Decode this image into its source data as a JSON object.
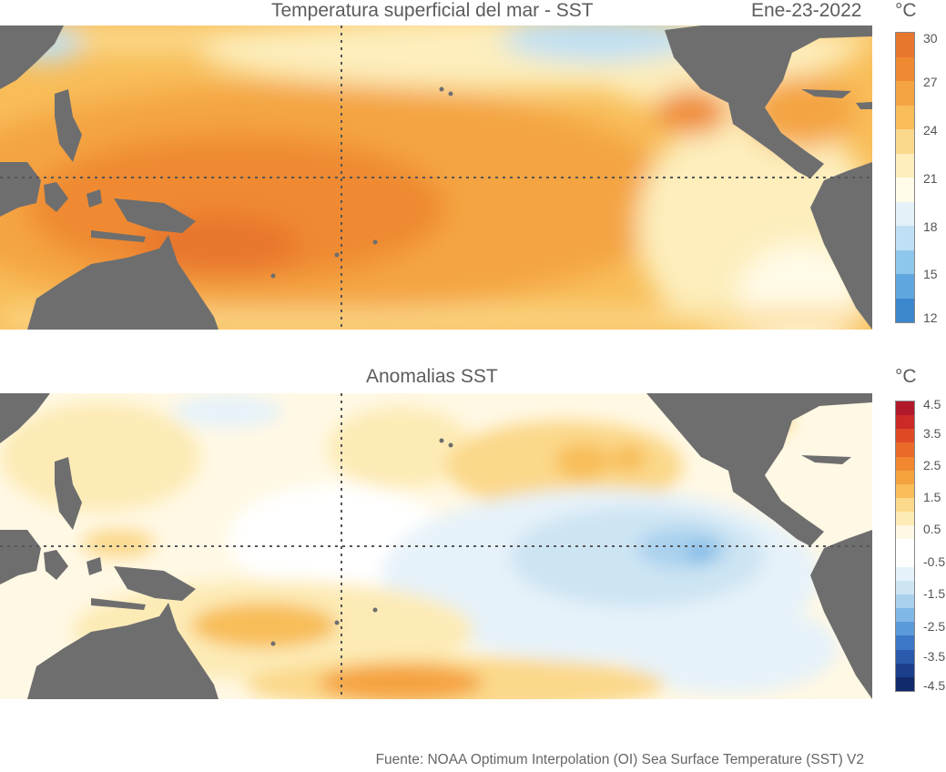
{
  "sst_panel": {
    "title": "Temperatura superficial del mar - SST",
    "date": "Ene-23-2022",
    "unit": "°C",
    "colorbar": {
      "ticks": [
        "30",
        "27",
        "24",
        "21",
        "18",
        "15",
        "12"
      ],
      "colors": [
        "#e8772e",
        "#ef8a33",
        "#f4a443",
        "#f8bd58",
        "#fbd98c",
        "#fdeebc",
        "#fffbe8",
        "#e4f1f9",
        "#bfe0f4",
        "#8fc6ec",
        "#5fa6de",
        "#3c86cc"
      ]
    }
  },
  "anomaly_panel": {
    "title": "Anomalias SST",
    "unit": "°C",
    "colorbar": {
      "ticks": [
        "4.5",
        "3.5",
        "2.5",
        "1.5",
        "0.5",
        "-0.5",
        "-1.5",
        "-2.5",
        "-3.5",
        "-4.5"
      ],
      "colors": [
        "#b2182b",
        "#cc2a26",
        "#df4a25",
        "#ea6a2a",
        "#f1872f",
        "#f5a33f",
        "#f8bd58",
        "#fbd88a",
        "#fdebb6",
        "#fff8e4",
        "#ffffff",
        "#ffffff",
        "#e6f2f9",
        "#cde4f3",
        "#a9d1ee",
        "#7fb8e6",
        "#5a9ad9",
        "#3d78c7",
        "#2a5aab",
        "#1c3f8c",
        "#112a6b"
      ]
    }
  },
  "source": "Fuente: NOAA Optimum Interpolation (OI) Sea Surface Temperature (SST) V2",
  "colors": {
    "land": "#6e6e6e",
    "grid": "#555555"
  }
}
